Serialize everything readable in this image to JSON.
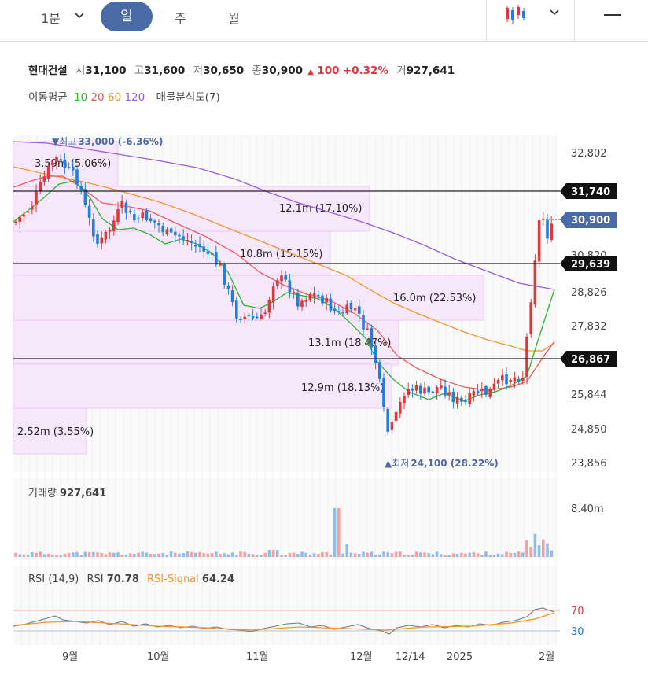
{
  "toolbar": {
    "interval_minute": "1분",
    "tabs": [
      "일",
      "주",
      "월"
    ],
    "active_tab": 0
  },
  "stock": {
    "name": "현대건설",
    "open_label": "시",
    "open": "31,100",
    "high_label": "고",
    "high": "31,600",
    "low_label": "저",
    "low": "30,650",
    "close_label": "종",
    "close": "30,900",
    "change": "100",
    "change_pct": "+0.32%",
    "volume_label": "거",
    "volume": "927,641"
  },
  "indicators": {
    "ma_label": "이동평균",
    "ma_periods": [
      "10",
      "20",
      "60",
      "120"
    ],
    "ma_colors": [
      "#2db32d",
      "#ef5a5a",
      "#f0962e",
      "#9b5be0"
    ],
    "vp_label": "매물분석도(7)"
  },
  "price_axis": [
    "32,802",
    "30,820",
    "28,826",
    "27,832",
    "25,844",
    "24,850",
    "23,856"
  ],
  "markers": {
    "high_label": "▼최고",
    "high": "33,000 (-6.36%)",
    "low_label": "▲최저",
    "low": "24,100 (28.22%)"
  },
  "price_tags": [
    {
      "value": "31,740",
      "kind": "line"
    },
    {
      "value": "30,900",
      "kind": "current"
    },
    {
      "value": "29,639",
      "kind": "line"
    },
    {
      "value": "26,867",
      "kind": "line"
    }
  ],
  "volume_profile": [
    "3.59m (5.06%)",
    "12.1m (17.10%)",
    "10.8m (15.15%)",
    "16.0m (22.53%)",
    "13.1m (18.47%)",
    "12.9m (18.13%)",
    "2.52m (3.55%)"
  ],
  "volume_panel": {
    "label": "거래량",
    "value": "927,641",
    "axis": "8.40m"
  },
  "rsi_panel": {
    "label": "RSI (14,9)",
    "rsi_label": "RSI",
    "rsi": "70.78",
    "signal_label": "RSI-Signal",
    "signal": "64.24",
    "levels": [
      "70",
      "30"
    ]
  },
  "x_axis": [
    "9월",
    "10월",
    "11월",
    "12월",
    "12/14",
    "2025",
    "2월"
  ],
  "colors": {
    "up": "#e0373b",
    "down": "#1f7fdc",
    "accent": "#4a6aa6",
    "profile": "#f6e8fa"
  }
}
